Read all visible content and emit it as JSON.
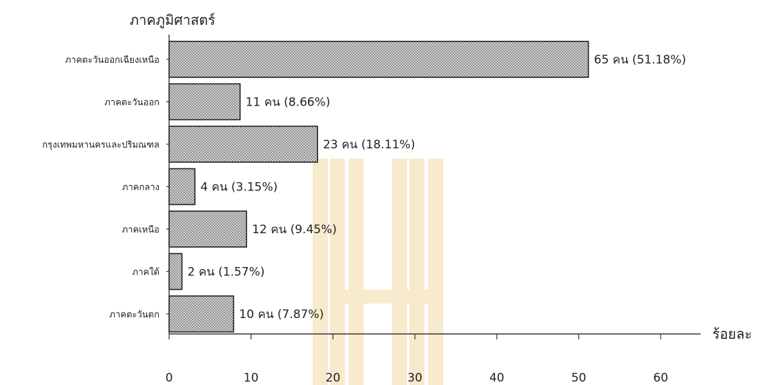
{
  "chart_data": {
    "type": "bar",
    "orientation": "horizontal",
    "title": "ภาคภูมิศาสตร์",
    "xlabel": "ร้อยละ",
    "ylabel": "",
    "xlim": [
      0,
      65
    ],
    "xticks": [
      0,
      10,
      20,
      30,
      40,
      50,
      60
    ],
    "grid": false,
    "categories": [
      "ภาคตะวันออกเฉียงเหนือ",
      "ภาคตะวันออก",
      "กรุงเทพมหานครและปริมณฑล",
      "ภาคกลาง",
      "ภาคเหนือ",
      "ภาคใต้",
      "ภาคตะวันตก"
    ],
    "values": [
      51.18,
      8.66,
      18.11,
      3.15,
      9.45,
      1.57,
      7.87
    ],
    "data_labels": [
      "65 คน (51.18%)",
      "11 คน (8.66%)",
      "23 คน (18.11%)",
      "4 คน (3.15%)",
      "12 คน (9.45%)",
      "2 คน (1.57%)",
      "10 คน (7.87%)"
    ]
  },
  "colors": {
    "bar_fill": "#bdbdbd",
    "bar_edge": "#222222",
    "axis": "#333333",
    "text": "#222222",
    "watermark": "#f3d9a6"
  }
}
